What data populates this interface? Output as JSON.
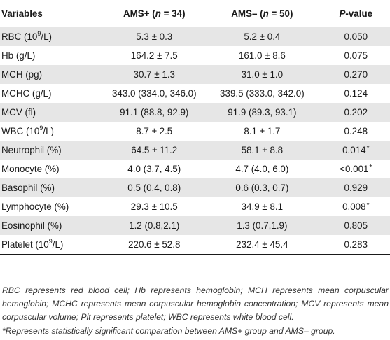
{
  "table": {
    "headers": {
      "variables": "Variables",
      "ams_pos_prefix": "AMS+ (",
      "ams_pos_n": "n",
      "ams_pos_suffix": " = 34)",
      "ams_neg_prefix": "AMS– (",
      "ams_neg_n": "n",
      "ams_neg_suffix": " = 50)",
      "p_letter": "P",
      "p_suffix": "-value"
    },
    "rows": [
      {
        "var": "RBC (10",
        "var_sup": "9",
        "var_end": "/L)",
        "ams_pos": "5.3 ± 0.3",
        "ams_neg": "5.2 ± 0.4",
        "p": "0.050",
        "star": ""
      },
      {
        "var": "Hb (g/L)",
        "var_sup": "",
        "var_end": "",
        "ams_pos": "164.2 ± 7.5",
        "ams_neg": "161.0 ± 8.6",
        "p": "0.075",
        "star": ""
      },
      {
        "var": "MCH (pg)",
        "var_sup": "",
        "var_end": "",
        "ams_pos": "30.7 ± 1.3",
        "ams_neg": "31.0 ± 1.0",
        "p": "0.270",
        "star": ""
      },
      {
        "var": "MCHC (g/L)",
        "var_sup": "",
        "var_end": "",
        "ams_pos": "343.0 (334.0, 346.0)",
        "ams_neg": "339.5 (333.0, 342.0)",
        "p": "0.124",
        "star": ""
      },
      {
        "var": "MCV (fl)",
        "var_sup": "",
        "var_end": "",
        "ams_pos": "91.1 (88.8, 92.9)",
        "ams_neg": "91.9 (89.3, 93.1)",
        "p": "0.202",
        "star": ""
      },
      {
        "var": "WBC (10",
        "var_sup": "9",
        "var_end": "/L)",
        "ams_pos": "8.7 ± 2.5",
        "ams_neg": "8.1 ± 1.7",
        "p": "0.248",
        "star": ""
      },
      {
        "var": "Neutrophil (%)",
        "var_sup": "",
        "var_end": "",
        "ams_pos": "64.5 ± 11.2",
        "ams_neg": "58.1 ± 8.8",
        "p": "0.014",
        "star": "*"
      },
      {
        "var": "Monocyte (%)",
        "var_sup": "",
        "var_end": "",
        "ams_pos": "4.0 (3.7, 4.5)",
        "ams_neg": "4.7 (4.0, 6.0)",
        "p": "<0.001",
        "star": "*"
      },
      {
        "var": "Basophil (%)",
        "var_sup": "",
        "var_end": "",
        "ams_pos": "0.5 (0.4, 0.8)",
        "ams_neg": "0.6 (0.3, 0.7)",
        "p": "0.929",
        "star": ""
      },
      {
        "var": "Lymphocyte (%)",
        "var_sup": "",
        "var_end": "",
        "ams_pos": "29.3 ± 10.5",
        "ams_neg": "34.9 ± 8.1",
        "p": "0.008",
        "star": "*"
      },
      {
        "var": "Eosinophil (%)",
        "var_sup": "",
        "var_end": "",
        "ams_pos": "1.2 (0.8,2.1)",
        "ams_neg": "1.3 (0.7,1.9)",
        "p": "0.805",
        "star": ""
      },
      {
        "var": "Platelet (10",
        "var_sup": "9",
        "var_end": "/L)",
        "ams_pos": "220.6 ± 52.8",
        "ams_neg": "232.4 ± 45.4",
        "p": "0.283",
        "star": ""
      }
    ]
  },
  "footnotes": {
    "abbreviations": "RBC represents red blood cell; Hb represents hemoglobin; MCH represents mean corpuscular hemoglobin; MCHC represents mean corpuscular hemoglobin concentration; MCV represents mean corpuscular volume; Plt represents platelet; WBC represents white blood cell.",
    "significance_star": "*",
    "significance": "Represents statistically significant comparation between AMS+ group and AMS– group."
  }
}
